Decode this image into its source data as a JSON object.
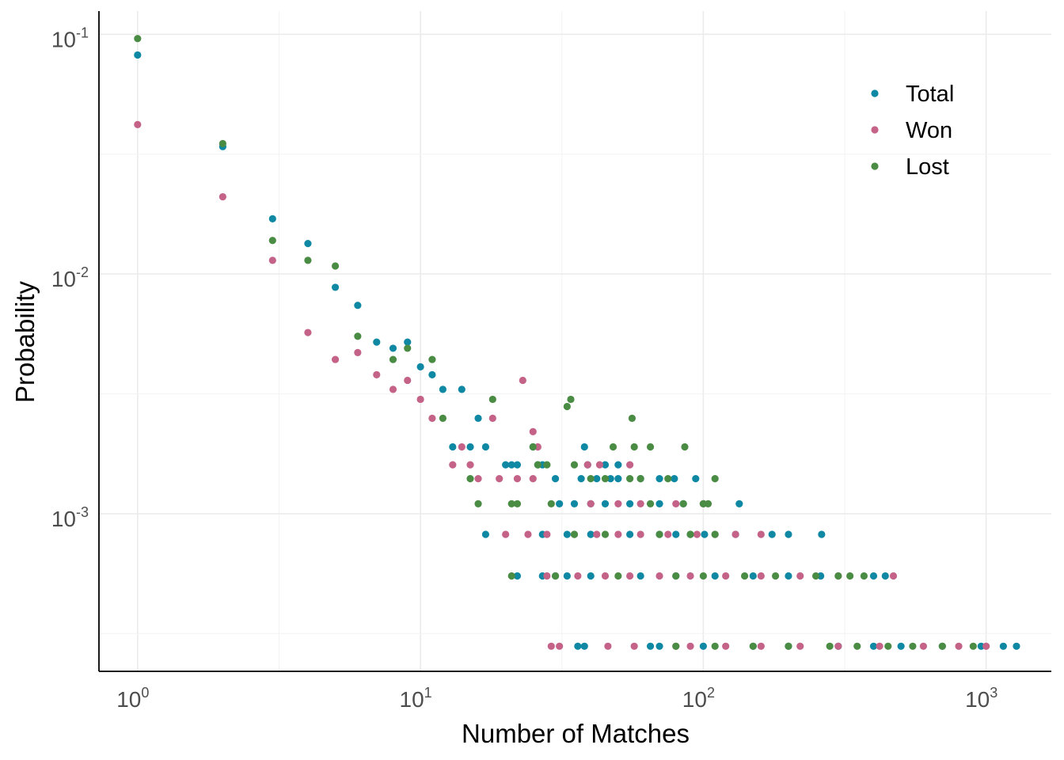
{
  "chart_data": {
    "type": "scatter",
    "xlabel": "Number of Matches",
    "ylabel": "Probability",
    "x_scale": "log10",
    "y_scale": "log10",
    "xlim": [
      0.73,
      1700
    ],
    "ylim": [
      0.00022,
      0.125
    ],
    "grid": true,
    "legend_position": "top-right",
    "x_ticks": [
      {
        "base": "10",
        "exp": "0",
        "value": 1
      },
      {
        "base": "10",
        "exp": "1",
        "value": 10
      },
      {
        "base": "10",
        "exp": "2",
        "value": 100
      },
      {
        "base": "10",
        "exp": "3",
        "value": 1000
      }
    ],
    "y_ticks": [
      {
        "base": "10",
        "exp": "-1",
        "value": 0.1
      },
      {
        "base": "10",
        "exp": "-2",
        "value": 0.01
      },
      {
        "base": "10",
        "exp": "-3",
        "value": 0.001
      }
    ],
    "series": [
      {
        "name": "Total",
        "color": "#0F88A4",
        "points": [
          [
            1,
            0.082
          ],
          [
            2,
            0.034
          ],
          [
            3,
            0.017
          ],
          [
            4,
            0.0134
          ],
          [
            5,
            0.0088
          ],
          [
            6,
            0.0074
          ],
          [
            7,
            0.0052
          ],
          [
            8,
            0.0049
          ],
          [
            9,
            0.0052
          ],
          [
            10,
            0.0041
          ],
          [
            11,
            0.0038
          ],
          [
            12,
            0.0033
          ],
          [
            14,
            0.0033
          ],
          [
            13,
            0.0019
          ],
          [
            16,
            0.0025
          ],
          [
            15,
            0.0019
          ],
          [
            17,
            0.0019
          ],
          [
            17,
            0.00082
          ],
          [
            22,
            0.0016
          ],
          [
            20,
            0.0016
          ],
          [
            21,
            0.0016
          ],
          [
            25,
            0.0019
          ],
          [
            26,
            0.0016
          ],
          [
            27,
            0.0016
          ],
          [
            30,
            0.0014
          ],
          [
            31,
            0.0011
          ],
          [
            33,
            0.00082
          ],
          [
            30,
            0.00055
          ],
          [
            33,
            0.00055
          ],
          [
            38,
            0.0019
          ],
          [
            39,
            0.0016
          ],
          [
            45,
            0.0016
          ],
          [
            50,
            0.0016
          ],
          [
            37,
            0.0014
          ],
          [
            42,
            0.0014
          ],
          [
            47,
            0.0014
          ],
          [
            50,
            0.0014
          ],
          [
            60,
            0.0014
          ],
          [
            70,
            0.0014
          ],
          [
            79,
            0.0014
          ],
          [
            35,
            0.0011
          ],
          [
            40,
            0.0011
          ],
          [
            45,
            0.0011
          ],
          [
            55,
            0.0011
          ],
          [
            70,
            0.0011
          ],
          [
            85,
            0.0011
          ],
          [
            94,
            0.0014
          ],
          [
            134,
            0.0011
          ],
          [
            27,
            0.00082
          ],
          [
            40,
            0.00082
          ],
          [
            55,
            0.00082
          ],
          [
            70,
            0.00082
          ],
          [
            80,
            0.00082
          ],
          [
            90,
            0.00082
          ],
          [
            101,
            0.00082
          ],
          [
            130,
            0.00082
          ],
          [
            175,
            0.00082
          ],
          [
            200,
            0.00082
          ],
          [
            262,
            0.00082
          ],
          [
            22,
            0.00055
          ],
          [
            27,
            0.00055
          ],
          [
            40,
            0.00055
          ],
          [
            60,
            0.00055
          ],
          [
            80,
            0.00055
          ],
          [
            110,
            0.00055
          ],
          [
            150,
            0.00055
          ],
          [
            200,
            0.00055
          ],
          [
            260,
            0.00055
          ],
          [
            400,
            0.00055
          ],
          [
            440,
            0.00055
          ],
          [
            36,
            0.00028
          ],
          [
            38,
            0.00028
          ],
          [
            65,
            0.00028
          ],
          [
            70,
            0.00028
          ],
          [
            100,
            0.00028
          ],
          [
            150,
            0.00028
          ],
          [
            200,
            0.00028
          ],
          [
            300,
            0.00028
          ],
          [
            400,
            0.00028
          ],
          [
            500,
            0.00028
          ],
          [
            700,
            0.00028
          ],
          [
            960,
            0.00028
          ],
          [
            1150,
            0.00028
          ],
          [
            1280,
            0.00028
          ]
        ]
      },
      {
        "name": "Won",
        "color": "#C46288",
        "points": [
          [
            1,
            0.042
          ],
          [
            2,
            0.021
          ],
          [
            3,
            0.0114
          ],
          [
            4,
            0.0057
          ],
          [
            5,
            0.0044
          ],
          [
            6,
            0.0047
          ],
          [
            7,
            0.0038
          ],
          [
            8,
            0.0033
          ],
          [
            9,
            0.0036
          ],
          [
            10,
            0.003
          ],
          [
            11,
            0.0025
          ],
          [
            14,
            0.0019
          ],
          [
            13,
            0.0016
          ],
          [
            15,
            0.0016
          ],
          [
            16,
            0.0014
          ],
          [
            18,
            0.0025
          ],
          [
            23,
            0.0036
          ],
          [
            25,
            0.0022
          ],
          [
            26,
            0.0019
          ],
          [
            19,
            0.0014
          ],
          [
            22,
            0.0014
          ],
          [
            25,
            0.0014
          ],
          [
            20,
            0.00082
          ],
          [
            24,
            0.00082
          ],
          [
            28,
            0.00082
          ],
          [
            35,
            0.00082
          ],
          [
            42,
            0.00082
          ],
          [
            50,
            0.00082
          ],
          [
            60,
            0.00082
          ],
          [
            75,
            0.00082
          ],
          [
            95,
            0.00082
          ],
          [
            110,
            0.00082
          ],
          [
            130,
            0.00082
          ],
          [
            160,
            0.00082
          ],
          [
            39,
            0.0016
          ],
          [
            43,
            0.0016
          ],
          [
            55,
            0.0016
          ],
          [
            40,
            0.0011
          ],
          [
            50,
            0.0011
          ],
          [
            60,
            0.0011
          ],
          [
            80,
            0.0011
          ],
          [
            100,
            0.0011
          ],
          [
            28,
            0.00055
          ],
          [
            36,
            0.00055
          ],
          [
            45,
            0.00055
          ],
          [
            55,
            0.00055
          ],
          [
            70,
            0.00055
          ],
          [
            90,
            0.00055
          ],
          [
            120,
            0.00055
          ],
          [
            160,
            0.00055
          ],
          [
            220,
            0.00055
          ],
          [
            300,
            0.00055
          ],
          [
            470,
            0.00055
          ],
          [
            29,
            0.00028
          ],
          [
            31,
            0.00028
          ],
          [
            46,
            0.00028
          ],
          [
            57,
            0.00028
          ],
          [
            80,
            0.00028
          ],
          [
            90,
            0.00028
          ],
          [
            120,
            0.00028
          ],
          [
            160,
            0.00028
          ],
          [
            220,
            0.00028
          ],
          [
            300,
            0.00028
          ],
          [
            420,
            0.00028
          ],
          [
            600,
            0.00028
          ],
          [
            800,
            0.00028
          ],
          [
            1000,
            0.00028
          ]
        ]
      },
      {
        "name": "Lost",
        "color": "#4B8C45",
        "points": [
          [
            1,
            0.096
          ],
          [
            2,
            0.035
          ],
          [
            3,
            0.0138
          ],
          [
            4,
            0.0114
          ],
          [
            5,
            0.0108
          ],
          [
            6,
            0.0055
          ],
          [
            8,
            0.0044
          ],
          [
            9,
            0.0049
          ],
          [
            11,
            0.0044
          ],
          [
            12,
            0.0025
          ],
          [
            15,
            0.0014
          ],
          [
            16,
            0.0011
          ],
          [
            18,
            0.003
          ],
          [
            21,
            0.0011
          ],
          [
            22,
            0.0011
          ],
          [
            25,
            0.0019
          ],
          [
            26,
            0.0016
          ],
          [
            28,
            0.0016
          ],
          [
            29,
            0.0011
          ],
          [
            33,
            0.0028
          ],
          [
            34,
            0.003
          ],
          [
            35,
            0.0016
          ],
          [
            40,
            0.0014
          ],
          [
            45,
            0.0014
          ],
          [
            48,
            0.0019
          ],
          [
            56,
            0.0025
          ],
          [
            57,
            0.0019
          ],
          [
            65,
            0.0019
          ],
          [
            86,
            0.0019
          ],
          [
            55,
            0.0014
          ],
          [
            60,
            0.0014
          ],
          [
            75,
            0.0014
          ],
          [
            110,
            0.0014
          ],
          [
            65,
            0.0011
          ],
          [
            85,
            0.0011
          ],
          [
            100,
            0.0011
          ],
          [
            104,
            0.0011
          ],
          [
            35,
            0.00082
          ],
          [
            45,
            0.00082
          ],
          [
            70,
            0.00082
          ],
          [
            90,
            0.00082
          ],
          [
            110,
            0.00082
          ],
          [
            21,
            0.00055
          ],
          [
            30,
            0.00055
          ],
          [
            50,
            0.00055
          ],
          [
            80,
            0.00055
          ],
          [
            100,
            0.00055
          ],
          [
            140,
            0.00055
          ],
          [
            180,
            0.00055
          ],
          [
            250,
            0.00055
          ],
          [
            300,
            0.00055
          ],
          [
            330,
            0.00055
          ],
          [
            370,
            0.00055
          ],
          [
            80,
            0.00028
          ],
          [
            110,
            0.00028
          ],
          [
            150,
            0.00028
          ],
          [
            200,
            0.00028
          ],
          [
            280,
            0.00028
          ],
          [
            350,
            0.00028
          ],
          [
            450,
            0.00028
          ],
          [
            550,
            0.00028
          ],
          [
            700,
            0.00028
          ],
          [
            900,
            0.00028
          ]
        ]
      }
    ]
  }
}
